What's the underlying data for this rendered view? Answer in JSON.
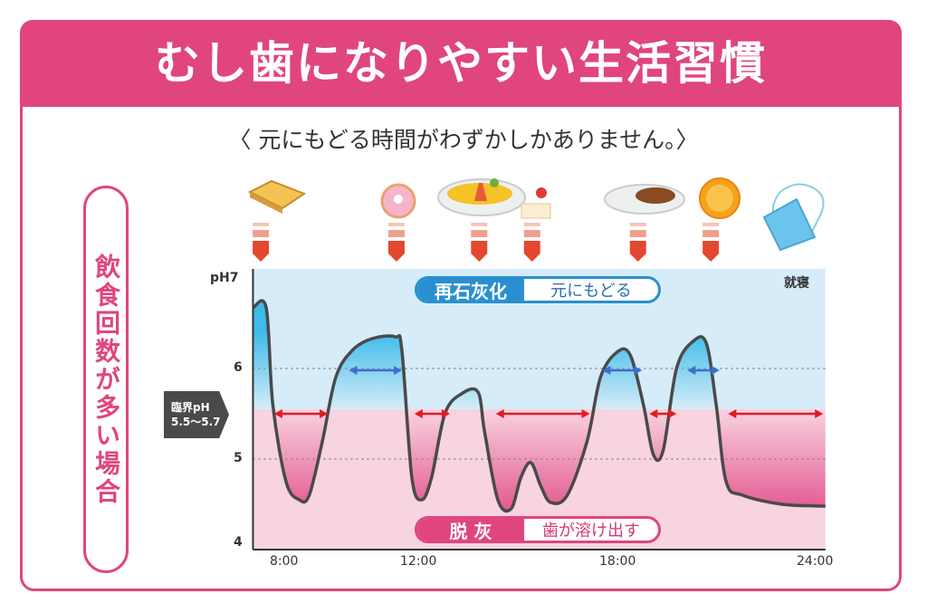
{
  "title": "むし歯になりやすい生活習慣",
  "subtitle": "〈 元にもどる時間がわずかしかありません。〉",
  "side_label": "飲食回数が多い場合",
  "icons": [
    "toast-icon",
    "donut-icon",
    "omelette-rice-icon",
    "cake-icon",
    "curry-rice-icon",
    "orange-icon",
    "sleeping-tooth-icon"
  ],
  "colors": {
    "brand_pink": "#e0457f",
    "remineral_blue": "#2a8fd0",
    "acid_arrow_red": "#e01b24",
    "recovery_arrow_blue": "#3a6fd0",
    "bg_blue": "#d6ecf8",
    "bg_pink": "#f8d3e0"
  },
  "chart_data": {
    "type": "line",
    "title": "",
    "xlabel": "",
    "ylabel": "",
    "y_ticks": [
      "pH7",
      "6",
      "5",
      "4"
    ],
    "y_tick_values": [
      7,
      6,
      5,
      4
    ],
    "ylim": [
      4,
      7
    ],
    "x_ticks": [
      "8:00",
      "12:00",
      "18:00",
      "24:00"
    ],
    "x_tick_values": [
      8,
      12,
      18,
      24
    ],
    "xlim": [
      7,
      24.3
    ],
    "grid": "dotted at pH 6 and 5",
    "critical_label": {
      "line1": "臨界pH",
      "line2": "5.5〜5.7"
    },
    "critical_ph": 5.55,
    "remineralization": {
      "label": "再石灰化",
      "desc": "元にもどる"
    },
    "demineralization": {
      "label": "脱 灰",
      "desc": "歯が溶け出す"
    },
    "bedtime_label": "就寝",
    "meal_times": [
      7.4,
      11.5,
      14.0,
      15.6,
      18.8,
      21.0
    ],
    "series": [
      {
        "x": [
          7.0,
          7.4,
          7.6,
          8.0,
          8.4,
          8.7,
          9.1,
          9.5,
          10.0,
          10.6,
          11.3,
          11.5,
          11.8,
          12.1,
          12.4,
          12.8,
          13.3,
          13.8,
          14.0,
          14.4,
          14.8,
          15.1,
          15.4,
          15.7,
          16.0,
          16.5,
          17.1,
          17.5,
          18.0,
          18.4,
          18.8,
          19.1,
          19.4,
          19.8,
          20.3,
          20.7,
          21.0,
          21.3,
          21.8,
          23.0,
          24.3
        ],
        "y": [
          6.67,
          6.67,
          5.6,
          4.75,
          4.55,
          4.6,
          5.2,
          5.9,
          6.2,
          6.33,
          6.35,
          6.2,
          4.8,
          4.55,
          4.8,
          5.5,
          5.72,
          5.74,
          5.3,
          4.55,
          4.45,
          4.8,
          4.96,
          4.7,
          4.52,
          4.6,
          5.2,
          5.9,
          6.18,
          6.15,
          5.6,
          5.05,
          5.1,
          6.0,
          6.3,
          6.28,
          5.6,
          4.75,
          4.6,
          4.5,
          4.48
        ]
      }
    ],
    "demineralization_ranges": [
      [
        7.64,
        9.26
      ],
      [
        11.88,
        12.95
      ],
      [
        14.34,
        17.18
      ],
      [
        18.98,
        19.8
      ],
      [
        21.36,
        24.23
      ]
    ],
    "remineralization_ranges": [
      [
        9.9,
        11.5
      ],
      [
        17.56,
        18.76
      ],
      [
        20.13,
        21.1
      ]
    ]
  }
}
